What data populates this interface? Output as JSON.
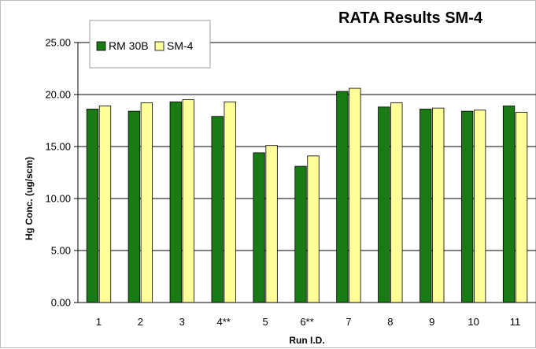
{
  "chart_data": {
    "type": "bar",
    "title": "RATA Results SM-4",
    "xlabel": "Run I.D.",
    "ylabel": "Hg Conc. (ug/scm)",
    "categories": [
      "1",
      "2",
      "3",
      "4**",
      "5",
      "6**",
      "7",
      "8",
      "9",
      "10",
      "11"
    ],
    "series": [
      {
        "name": "RM 30B",
        "color": "#1a7a14",
        "values": [
          18.6,
          18.4,
          19.3,
          17.9,
          14.4,
          13.1,
          20.3,
          18.8,
          18.6,
          18.4,
          18.9
        ]
      },
      {
        "name": "SM-4",
        "color": "#ffff99",
        "values": [
          18.9,
          19.2,
          19.5,
          19.3,
          15.1,
          14.1,
          20.6,
          19.2,
          18.7,
          18.5,
          18.3
        ]
      }
    ],
    "ylim": [
      0,
      25
    ],
    "yticks": [
      "0.00",
      "5.00",
      "10.00",
      "15.00",
      "20.00",
      "25.00"
    ],
    "grid": true,
    "legend_position": "top-left"
  }
}
